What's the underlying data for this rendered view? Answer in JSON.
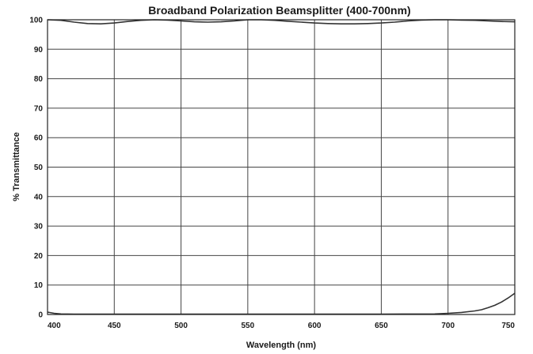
{
  "chart_data": {
    "type": "line",
    "title": "Broadband Polarization Beamsplitter (400-700nm)",
    "xlabel": "Wavelength (nm)",
    "ylabel": "% Transmittance",
    "xlim": [
      400,
      750
    ],
    "ylim": [
      0,
      100
    ],
    "xticks": [
      "400",
      "450",
      "500",
      "550",
      "600",
      "650",
      "700",
      "750"
    ],
    "yticks": [
      "0",
      "10",
      "20",
      "30",
      "40",
      "50",
      "60",
      "70",
      "80",
      "90",
      "100"
    ],
    "grid": true,
    "legend": "none",
    "colors": {
      "line": "#333333",
      "grid": "#444444",
      "frame": "#222222"
    },
    "series": [
      {
        "x": [
          400,
          410,
          420,
          430,
          440,
          450,
          460,
          470,
          480,
          490,
          500,
          510,
          520,
          530,
          540,
          550,
          560,
          570,
          580,
          590,
          600,
          610,
          620,
          630,
          640,
          650,
          660,
          670,
          680,
          690,
          700,
          710,
          720,
          730,
          740,
          750
        ],
        "values": [
          100,
          99.8,
          99.2,
          98.7,
          98.6,
          98.9,
          99.4,
          99.8,
          100,
          99.9,
          99.6,
          99.3,
          99.2,
          99.3,
          99.6,
          100,
          100,
          99.8,
          99.5,
          99.2,
          98.9,
          98.7,
          98.6,
          98.6,
          98.7,
          98.9,
          99.2,
          99.6,
          99.9,
          100,
          100,
          99.9,
          99.8,
          99.6,
          99.4,
          99.3
        ]
      },
      {
        "x": [
          400,
          405,
          410,
          420,
          430,
          440,
          450,
          500,
          550,
          600,
          650,
          690,
          700,
          710,
          720,
          725,
          730,
          735,
          740,
          745,
          750
        ],
        "values": [
          0.8,
          0.4,
          0.2,
          0.1,
          0.1,
          0.1,
          0.1,
          0.1,
          0.1,
          0.1,
          0.1,
          0.2,
          0.4,
          0.7,
          1.2,
          1.6,
          2.3,
          3.1,
          4.2,
          5.6,
          7.2
        ]
      }
    ]
  }
}
